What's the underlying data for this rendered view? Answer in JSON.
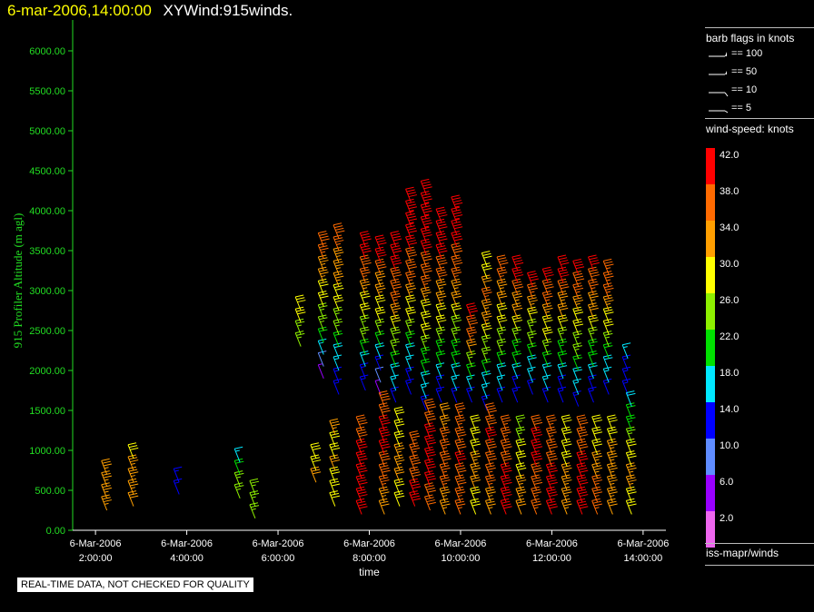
{
  "header": {
    "date": "6-mar-2006,14:00:00",
    "title": "XYWind:915winds."
  },
  "chart_data": {
    "type": "scatter",
    "marker": "wind-barb",
    "ylabel": "915 Profiler Altitude (m agl)",
    "xlabel": "time",
    "ylim": [
      0,
      6250
    ],
    "xlim": [
      "6-Mar-2006 1:30:00",
      "6-Mar-2006 14:30:00"
    ],
    "yticks": [
      "0.00",
      "500.00",
      "1000.00",
      "1500.00",
      "2000.00",
      "2500.00",
      "3000.00",
      "3500.00",
      "4000.00",
      "4500.00",
      "5000.00",
      "5500.00",
      "6000.00"
    ],
    "xticks": [
      {
        "date": "6-Mar-2006",
        "time": "2:00:00"
      },
      {
        "date": "6-Mar-2006",
        "time": "4:00:00"
      },
      {
        "date": "6-Mar-2006",
        "time": "6:00:00"
      },
      {
        "date": "6-Mar-2006",
        "time": "8:00:00"
      },
      {
        "date": "6-Mar-2006",
        "time": "10:00:00"
      },
      {
        "date": "6-Mar-2006",
        "time": "12:00:00"
      },
      {
        "date": "6-Mar-2006",
        "time": "14:00:00"
      }
    ],
    "profiles": [
      {
        "time": "2:15",
        "bottom": 250,
        "top": 700,
        "speeds": [
          34,
          36,
          34
        ]
      },
      {
        "time": "2:50",
        "bottom": 300,
        "top": 900,
        "speeds": [
          32,
          36,
          34,
          30
        ]
      },
      {
        "time": "3:50",
        "bottom": 450,
        "top": 600,
        "speeds": [
          14,
          14
        ]
      },
      {
        "time": "5:10",
        "bottom": 400,
        "top": 800,
        "speeds": [
          26,
          24,
          16
        ]
      },
      {
        "time": "5:30",
        "bottom": 150,
        "top": 400,
        "speeds": [
          24,
          26
        ]
      },
      {
        "time": "6:30",
        "bottom": 2300,
        "top": 2800,
        "speeds": [
          26,
          28,
          30
        ]
      },
      {
        "time": "6:50",
        "bottom": 600,
        "top": 900,
        "speeds": [
          32,
          30
        ]
      },
      {
        "time": "7:00",
        "bottom": 1900,
        "top": 3500,
        "speeds": [
          6,
          14,
          22,
          26,
          30,
          34,
          36,
          38
        ]
      },
      {
        "time": "7:15",
        "bottom": 300,
        "top": 1200,
        "speeds": [
          28,
          30,
          32,
          30,
          34
        ]
      },
      {
        "time": "7:20",
        "bottom": 1700,
        "top": 3700,
        "speeds": [
          14,
          16,
          20,
          24,
          28,
          32,
          34,
          36,
          38
        ]
      },
      {
        "time": "7:50",
        "bottom": 200,
        "top": 1300,
        "speeds": [
          40,
          42,
          40,
          42,
          40,
          38
        ]
      },
      {
        "time": "7:55",
        "bottom": 1750,
        "top": 3550,
        "speeds": [
          14,
          16,
          20,
          24,
          28,
          30,
          34,
          38,
          40,
          42
        ]
      },
      {
        "time": "8:15",
        "bottom": 1700,
        "top": 3450,
        "speeds": [
          6,
          12,
          16,
          22,
          26,
          30,
          34,
          36,
          40,
          42
        ]
      },
      {
        "time": "8:20",
        "bottom": 200,
        "top": 1500,
        "speeds": [
          32,
          36,
          38,
          40,
          42,
          40,
          38
        ]
      },
      {
        "time": "8:35",
        "bottom": 1600,
        "top": 3600,
        "speeds": [
          14,
          18,
          22,
          26,
          30,
          34,
          38,
          40,
          42,
          42
        ]
      },
      {
        "time": "8:40",
        "bottom": 300,
        "top": 1300,
        "speeds": [
          30,
          32,
          34,
          30,
          28
        ]
      },
      {
        "time": "8:55",
        "bottom": 1700,
        "top": 4050,
        "speeds": [
          14,
          16,
          20,
          26,
          30,
          34,
          38,
          40,
          42,
          44,
          42
        ]
      },
      {
        "time": "9:00",
        "bottom": 300,
        "top": 1100,
        "speeds": [
          42,
          40,
          38,
          36
        ]
      },
      {
        "time": "9:15",
        "bottom": 1500,
        "top": 4200,
        "speeds": [
          14,
          18,
          22,
          28,
          30,
          34,
          38,
          40,
          42,
          44,
          42
        ]
      },
      {
        "time": "9:20",
        "bottom": 250,
        "top": 1400,
        "speeds": [
          38,
          40,
          42,
          40,
          38
        ]
      },
      {
        "time": "9:35",
        "bottom": 1600,
        "top": 3800,
        "speeds": [
          14,
          16,
          22,
          26,
          30,
          34,
          38,
          40,
          42,
          42
        ]
      },
      {
        "time": "9:40",
        "bottom": 200,
        "top": 1400,
        "speeds": [
          34,
          36,
          38,
          36,
          32
        ]
      },
      {
        "time": "9:55",
        "bottom": 1600,
        "top": 4050,
        "speeds": [
          14,
          18,
          22,
          26,
          30,
          34,
          38,
          40,
          42,
          44
        ]
      },
      {
        "time": "10:00",
        "bottom": 200,
        "top": 1400,
        "speeds": [
          36,
          38,
          40,
          38,
          36
        ]
      },
      {
        "time": "10:15",
        "bottom": 1600,
        "top": 2600,
        "speeds": [
          14,
          20,
          30,
          38,
          40
        ]
      },
      {
        "time": "10:20",
        "bottom": 200,
        "top": 1300,
        "speeds": [
          30,
          32,
          34,
          30,
          28
        ]
      },
      {
        "time": "10:35",
        "bottom": 1500,
        "top": 3300,
        "speeds": [
          14,
          18,
          22,
          26,
          30,
          34,
          36,
          30,
          28
        ]
      },
      {
        "time": "10:40",
        "bottom": 200,
        "top": 1400,
        "speeds": [
          34,
          36,
          38,
          40,
          38
        ]
      },
      {
        "time": "10:55",
        "bottom": 1600,
        "top": 3300,
        "speeds": [
          14,
          18,
          22,
          26,
          30,
          32,
          36,
          38
        ]
      },
      {
        "time": "11:00",
        "bottom": 200,
        "top": 1300,
        "speeds": [
          40,
          42,
          40,
          38,
          36
        ]
      },
      {
        "time": "11:15",
        "bottom": 1600,
        "top": 3250,
        "speeds": [
          14,
          16,
          20,
          24,
          28,
          32,
          36,
          40,
          42
        ]
      },
      {
        "time": "11:20",
        "bottom": 200,
        "top": 1300,
        "speeds": [
          32,
          34,
          30,
          28,
          26
        ]
      },
      {
        "time": "11:35",
        "bottom": 1700,
        "top": 3100,
        "speeds": [
          14,
          18,
          22,
          26,
          30,
          34,
          40
        ]
      },
      {
        "time": "11:40",
        "bottom": 200,
        "top": 1300,
        "speeds": [
          36,
          38,
          40,
          42,
          38
        ]
      },
      {
        "time": "11:55",
        "bottom": 1600,
        "top": 3150,
        "speeds": [
          14,
          18,
          22,
          26,
          30,
          34,
          38,
          42
        ]
      },
      {
        "time": "12:00",
        "bottom": 200,
        "top": 1300,
        "speeds": [
          40,
          42,
          40,
          38,
          36
        ]
      },
      {
        "time": "12:15",
        "bottom": 1600,
        "top": 3200,
        "speeds": [
          14,
          16,
          20,
          24,
          28,
          32,
          36,
          40,
          42
        ]
      },
      {
        "time": "12:20",
        "bottom": 200,
        "top": 1300,
        "speeds": [
          34,
          36,
          32,
          30,
          28
        ]
      },
      {
        "time": "12:35",
        "bottom": 1550,
        "top": 3250,
        "speeds": [
          14,
          18,
          22,
          26,
          30,
          34,
          38,
          42
        ]
      },
      {
        "time": "12:40",
        "bottom": 200,
        "top": 1200,
        "speeds": [
          40,
          42,
          40,
          38
        ]
      },
      {
        "time": "12:55",
        "bottom": 1600,
        "top": 3300,
        "speeds": [
          14,
          16,
          20,
          24,
          28,
          32,
          36,
          38,
          42
        ]
      },
      {
        "time": "13:00",
        "bottom": 200,
        "top": 1300,
        "speeds": [
          36,
          38,
          34,
          30,
          28
        ]
      },
      {
        "time": "13:15",
        "bottom": 1700,
        "top": 3200,
        "speeds": [
          14,
          18,
          22,
          26,
          30,
          34,
          38,
          36
        ]
      },
      {
        "time": "13:20",
        "bottom": 200,
        "top": 1200,
        "speeds": [
          32,
          34,
          36,
          32,
          30
        ]
      },
      {
        "time": "13:40",
        "bottom": 1700,
        "top": 2100,
        "speeds": [
          14,
          16
        ]
      },
      {
        "time": "13:45",
        "bottom": 200,
        "top": 1600,
        "speeds": [
          30,
          32,
          34,
          30,
          26,
          22,
          18
        ]
      }
    ]
  },
  "legend": {
    "flags_title": "barb flags in knots",
    "flags": [
      "== 100",
      "== 50",
      "== 10",
      "== 5"
    ],
    "speed_title": "wind-speed: knots",
    "colorbar": [
      {
        "label": "42.0",
        "color": "#ff0000"
      },
      {
        "label": "38.0",
        "color": "#ff6a00"
      },
      {
        "label": "34.0",
        "color": "#ff9f00"
      },
      {
        "label": "30.0",
        "color": "#ffff00"
      },
      {
        "label": "26.0",
        "color": "#8ef000"
      },
      {
        "label": "22.0",
        "color": "#00e000"
      },
      {
        "label": "18.0",
        "color": "#00e8ff"
      },
      {
        "label": "14.0",
        "color": "#0000ff"
      },
      {
        "label": "10.0",
        "color": "#5f8cff"
      },
      {
        "label": "6.0",
        "color": "#9900ff"
      },
      {
        "label": "2.0",
        "color": "#ee66ee"
      }
    ],
    "source": "iss-mapr/winds"
  },
  "footer": {
    "note": "REAL-TIME DATA, NOT CHECKED FOR QUALITY"
  }
}
